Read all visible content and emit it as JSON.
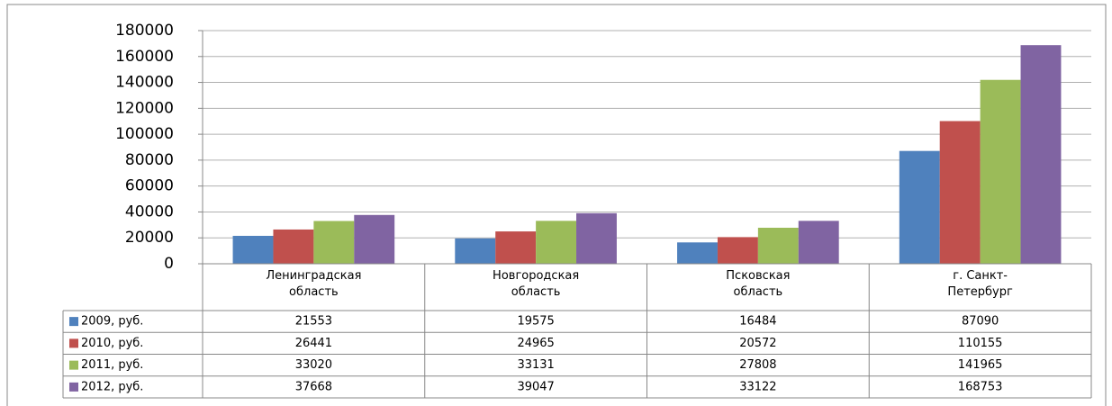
{
  "chart_data": {
    "type": "bar",
    "categories": [
      "Ленинградская\nобласть",
      "Новгородская\nобласть",
      "Псковская\nобласть",
      "г. Санкт-\nПетербург"
    ],
    "series": [
      {
        "name": "2009, руб.",
        "color": "#4f81bd",
        "values": [
          21553,
          19575,
          16484,
          87090
        ]
      },
      {
        "name": "2010, руб.",
        "color": "#c0504d",
        "values": [
          26441,
          24965,
          20572,
          110155
        ]
      },
      {
        "name": "2011, руб.",
        "color": "#9bbb59",
        "values": [
          33020,
          33131,
          27808,
          141965
        ]
      },
      {
        "name": "2012, руб.",
        "color": "#8064a2",
        "values": [
          37668,
          39047,
          33122,
          168753
        ]
      }
    ],
    "ylim": [
      0,
      180000
    ],
    "yticks": [
      0,
      20000,
      40000,
      60000,
      80000,
      100000,
      120000,
      140000,
      160000,
      180000
    ],
    "grid": true,
    "data_table": true
  }
}
